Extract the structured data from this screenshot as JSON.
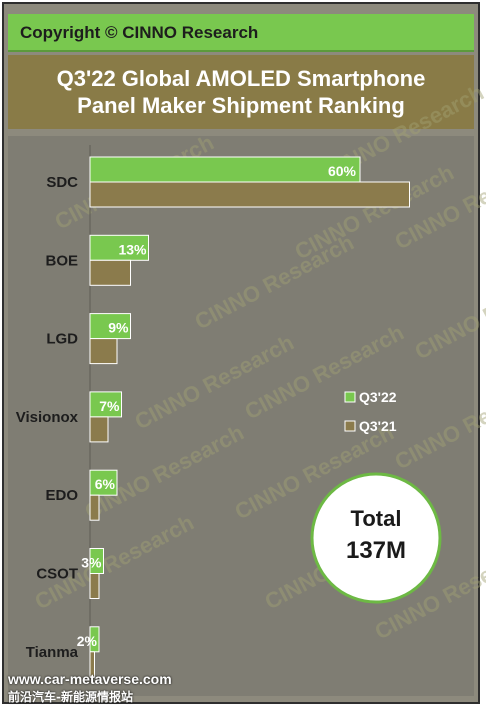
{
  "copyright": "Copyright © CINNO Research",
  "title_line1": "Q3'22 Global AMOLED Smartphone",
  "title_line2": "Panel Maker Shipment Ranking",
  "watermark_text": "CINNO Research",
  "total": {
    "label": "Total",
    "value": "137M"
  },
  "footer": {
    "url": "www.car-metaverse.com",
    "tagline": "前沿汽车-新能源情报站"
  },
  "colors": {
    "q322": "#79c84f",
    "q321": "#8b7b4c",
    "background": "#7f7d73"
  },
  "chart_data": {
    "type": "bar",
    "orientation": "horizontal",
    "categories": [
      "SDC",
      "BOE",
      "LGD",
      "Visionox",
      "EDO",
      "CSOT",
      "Tianma"
    ],
    "series": [
      {
        "name": "Q3'22",
        "values": [
          60,
          13,
          9,
          7,
          6,
          3,
          2
        ],
        "labels": [
          "60%",
          "13%",
          "9%",
          "7%",
          "6%",
          "3%",
          "2%"
        ]
      },
      {
        "name": "Q3'21",
        "values": [
          71,
          9,
          6,
          4,
          2,
          2,
          1
        ]
      }
    ],
    "legend": "right-middle"
  }
}
